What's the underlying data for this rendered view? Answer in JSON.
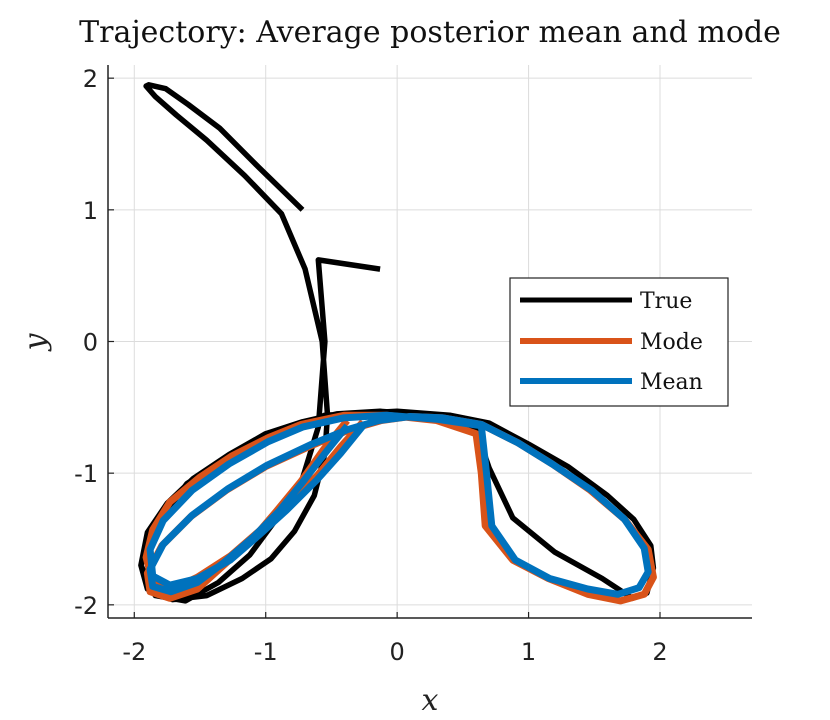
{
  "chart_data": {
    "type": "line",
    "title": "Trajectory: Average posterior mean and mode",
    "xlabel": "x",
    "ylabel": "y",
    "xlim": [
      -2.2,
      2.7
    ],
    "ylim": [
      -2.1,
      2.1
    ],
    "xticks": [
      -2,
      -1,
      0,
      1,
      2
    ],
    "yticks": [
      -2,
      -1,
      0,
      1,
      2
    ],
    "xtick_labels": [
      "-2",
      "-1",
      "0",
      "1",
      "2"
    ],
    "ytick_labels": [
      "-2",
      "-1",
      "0",
      "1",
      "2"
    ],
    "grid": true,
    "legend_position": "right",
    "series": [
      {
        "name": "True",
        "color": "#000000",
        "x": [
          -0.13,
          -0.6,
          -0.55,
          -0.6,
          -0.72,
          -0.92,
          -1.12,
          -1.36,
          -1.61,
          -1.84,
          -1.95,
          -1.9,
          -1.75,
          -1.55,
          -1.28,
          -1.0,
          -0.72,
          -0.46,
          -0.13,
          0.3,
          0.6,
          0.7,
          0.88,
          1.2,
          1.56,
          1.79,
          1.9,
          1.95,
          1.93,
          1.8,
          1.6,
          1.3,
          1.0,
          0.7,
          0.4,
          0.0,
          -0.55,
          -0.9,
          -1.3,
          -1.6,
          -1.84,
          -1.95,
          -1.9,
          -1.71,
          -1.45,
          -1.18,
          -0.96,
          -0.78,
          -0.63,
          -0.55,
          -0.53,
          -0.57,
          -0.7,
          -0.88,
          -1.16,
          -1.45,
          -1.68,
          -1.84,
          -1.91,
          -1.89,
          -1.76,
          -1.59,
          -1.35,
          -1.05,
          -0.72
        ],
        "y": [
          0.55,
          0.62,
          0.0,
          -0.65,
          -1.04,
          -1.35,
          -1.62,
          -1.83,
          -1.97,
          -1.93,
          -1.7,
          -1.45,
          -1.23,
          -1.04,
          -0.86,
          -0.7,
          -0.61,
          -0.55,
          -0.53,
          -0.56,
          -0.67,
          -0.96,
          -1.34,
          -1.6,
          -1.8,
          -1.95,
          -1.91,
          -1.72,
          -1.55,
          -1.35,
          -1.17,
          -0.95,
          -0.78,
          -0.62,
          -0.56,
          -0.53,
          -0.56,
          -0.7,
          -0.88,
          -1.08,
          -1.4,
          -1.7,
          -1.88,
          -1.96,
          -1.93,
          -1.8,
          -1.65,
          -1.44,
          -1.17,
          -0.85,
          -0.56,
          0.0,
          0.55,
          0.97,
          1.26,
          1.53,
          1.72,
          1.86,
          1.94,
          1.95,
          1.92,
          1.8,
          1.62,
          1.32,
          1.0
        ]
      },
      {
        "name": "Mode",
        "color": "#d95319",
        "x": [
          -0.26,
          -0.43,
          -0.61,
          -0.84,
          -1.05,
          -1.27,
          -1.52,
          -1.73,
          -1.86,
          -1.91,
          -1.86,
          -1.73,
          -1.5,
          -1.26,
          -0.98,
          -0.73,
          -0.4,
          -0.08,
          0.3,
          0.6,
          0.64,
          0.67,
          0.88,
          1.15,
          1.45,
          1.7,
          1.88,
          1.95,
          1.91,
          1.73,
          1.47,
          1.18,
          0.92,
          0.64,
          0.35,
          0.1,
          -0.12,
          -0.36,
          -0.65,
          -1.0,
          -1.3,
          -1.57,
          -1.79,
          -1.9,
          -1.88,
          -1.73,
          -1.52,
          -1.32,
          -1.1,
          -0.92,
          -0.73,
          -0.56,
          -0.38
        ],
        "y": [
          -0.61,
          -0.8,
          -1.02,
          -1.24,
          -1.44,
          -1.63,
          -1.79,
          -1.89,
          -1.83,
          -1.64,
          -1.43,
          -1.22,
          -1.03,
          -0.87,
          -0.73,
          -0.63,
          -0.56,
          -0.56,
          -0.6,
          -0.7,
          -1.0,
          -1.4,
          -1.66,
          -1.8,
          -1.92,
          -1.97,
          -1.92,
          -1.79,
          -1.58,
          -1.35,
          -1.13,
          -0.93,
          -0.77,
          -0.63,
          -0.58,
          -0.57,
          -0.6,
          -0.67,
          -0.79,
          -0.95,
          -1.13,
          -1.33,
          -1.55,
          -1.76,
          -1.9,
          -1.95,
          -1.88,
          -1.7,
          -1.5,
          -1.29,
          -1.06,
          -0.82,
          -0.6
        ]
      },
      {
        "name": "Mean",
        "color": "#0072bd",
        "x": [
          -0.26,
          -0.43,
          -0.61,
          -0.84,
          -1.05,
          -1.27,
          -1.52,
          -1.73,
          -1.86,
          -1.88,
          -1.78,
          -1.56,
          -1.28,
          -0.98,
          -0.72,
          -0.41,
          -0.08,
          0.3,
          0.64,
          0.68,
          0.72,
          0.9,
          1.16,
          1.45,
          1.68,
          1.84,
          1.91,
          1.88,
          1.73,
          1.48,
          1.18,
          0.92,
          0.64,
          0.35,
          0.1,
          -0.14,
          -0.38,
          -0.65,
          -0.99,
          -1.29,
          -1.56,
          -1.78,
          -1.88,
          -1.86,
          -1.72,
          -1.52,
          -1.32,
          -1.1,
          -0.9,
          -0.72,
          -0.55,
          -0.38
        ],
        "y": [
          -0.64,
          -0.85,
          -1.05,
          -1.28,
          -1.47,
          -1.66,
          -1.8,
          -1.85,
          -1.78,
          -1.58,
          -1.36,
          -1.13,
          -0.93,
          -0.76,
          -0.65,
          -0.58,
          -0.56,
          -0.59,
          -0.64,
          -1.0,
          -1.4,
          -1.66,
          -1.8,
          -1.88,
          -1.92,
          -1.87,
          -1.75,
          -1.57,
          -1.35,
          -1.13,
          -0.93,
          -0.77,
          -0.63,
          -0.58,
          -0.57,
          -0.6,
          -0.67,
          -0.78,
          -0.94,
          -1.12,
          -1.32,
          -1.54,
          -1.73,
          -1.86,
          -1.9,
          -1.83,
          -1.68,
          -1.49,
          -1.29,
          -1.07,
          -0.85,
          -0.64
        ]
      }
    ]
  }
}
